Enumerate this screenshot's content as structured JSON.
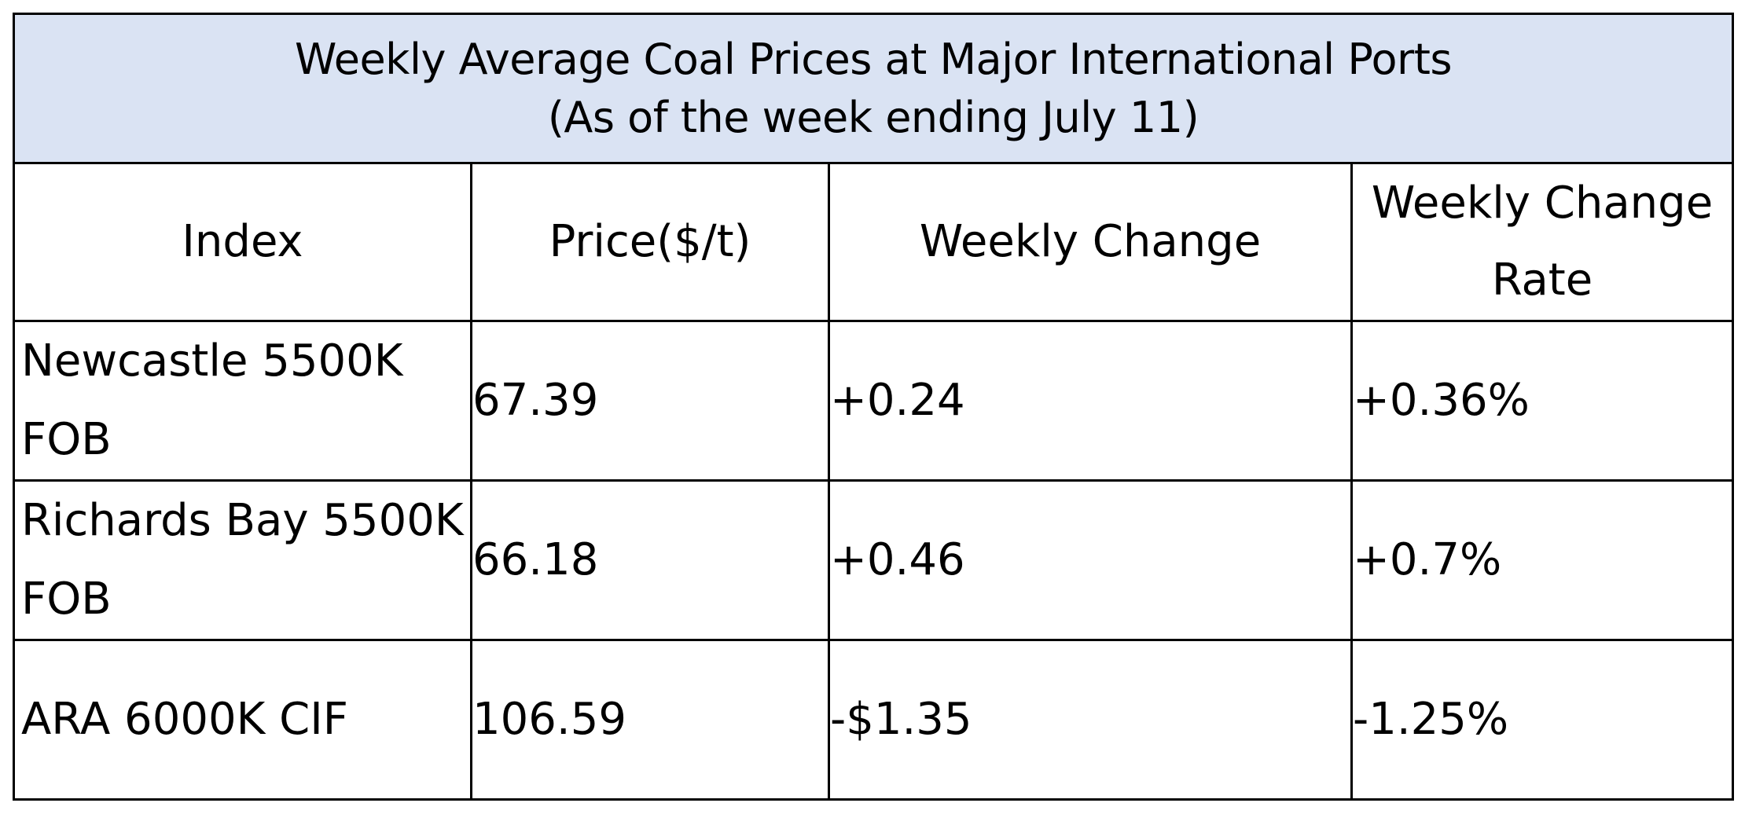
{
  "table": {
    "title_line1": "Weekly Average Coal Prices at Major International Ports",
    "title_line2": "(As of the week ending July 11)",
    "header_colors": {
      "title_background": "#dae3f3",
      "border": "#000000"
    },
    "columns": [
      "Index",
      "Price($/t)",
      "Weekly Change",
      "Weekly Change Rate"
    ],
    "rows": [
      {
        "index": "Newcastle 5500K FOB",
        "price": "67.39",
        "weekly_change": "+0.24",
        "weekly_change_rate": "+0.36%"
      },
      {
        "index": "Richards Bay 5500K FOB",
        "price": "66.18",
        "weekly_change": "+0.46",
        "weekly_change_rate": "+0.7%"
      },
      {
        "index": "ARA 6000K CIF",
        "price": "106.59",
        "weekly_change": "-$1.35",
        "weekly_change_rate": "-1.25%"
      }
    ]
  }
}
